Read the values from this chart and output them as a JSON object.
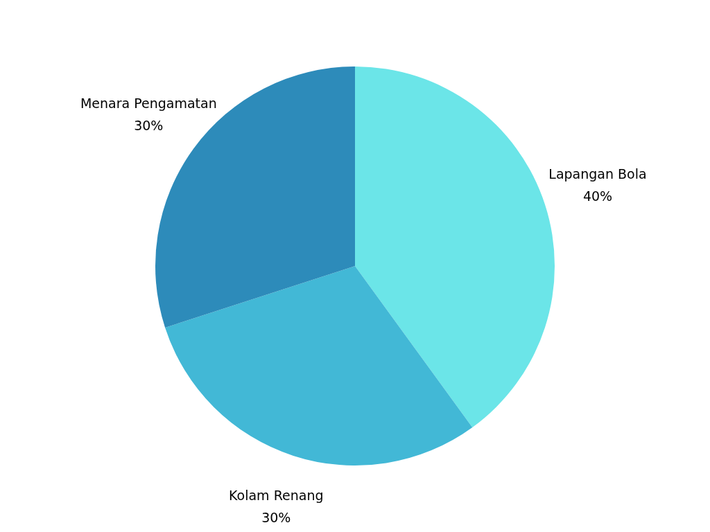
{
  "chart_data": {
    "type": "pie",
    "categories": [
      "Lapangan Bola",
      "Kolam Renang",
      "Menara Pengamatan"
    ],
    "values": [
      40,
      30,
      30
    ],
    "colors": [
      "#6be5e8",
      "#42b8d6",
      "#2d8bba"
    ],
    "value_labels": [
      "40%",
      "30%",
      "30%"
    ],
    "legend": false
  }
}
